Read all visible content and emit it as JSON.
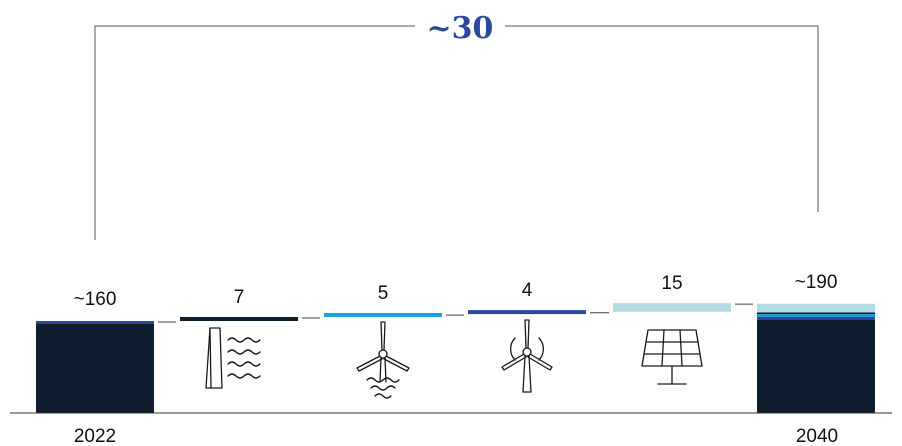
{
  "chart_data": {
    "type": "bar",
    "subtype": "waterfall",
    "categories": [
      "2022",
      "hydro",
      "offshore-wind",
      "onshore-wind",
      "solar",
      "2040"
    ],
    "value_labels": [
      "~160",
      "7",
      "5",
      "4",
      "15",
      "~190"
    ],
    "values": [
      160,
      7,
      5,
      4,
      15,
      190
    ],
    "bracket_label": "~30",
    "x_labels": [
      "2022",
      "2040"
    ],
    "icons": [
      "hydro-dam-icon",
      "offshore-wind-turbine-icon",
      "onshore-wind-turbine-icon",
      "solar-panel-icon"
    ],
    "colors": {
      "base": "#0f1e2e",
      "hydro": "#0f1e2e",
      "offshore": "#1aa3db",
      "onshore": "#2b4a9b",
      "solar": "#b2dbe3",
      "accent": "#2b4a9b"
    },
    "stacks": {
      "2022": [
        {
          "segment": "base",
          "value": 156
        },
        {
          "segment": "onshore",
          "value": 4
        }
      ],
      "2040": [
        {
          "segment": "base",
          "value": 163
        },
        {
          "segment": "onshore",
          "value": 4
        },
        {
          "segment": "offshore",
          "value": 5
        },
        {
          "segment": "hydro",
          "value": 3
        },
        {
          "segment": "solar",
          "value": 15
        }
      ]
    },
    "ylim": [
      0,
      190
    ]
  }
}
